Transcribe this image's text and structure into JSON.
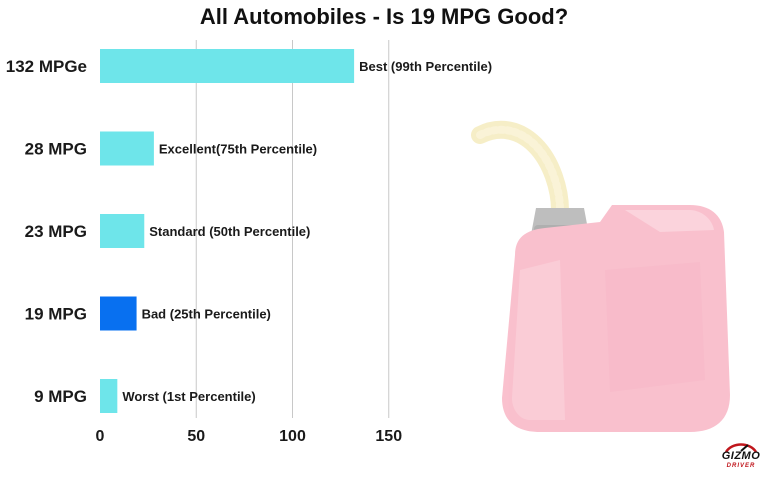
{
  "chart_data": {
    "type": "bar",
    "orientation": "horizontal",
    "title": "All Automobiles - Is 19 MPG Good?",
    "categories": [
      "132 MPGe",
      "28 MPG",
      "23 MPG",
      "19 MPG",
      "9 MPG"
    ],
    "values": [
      132,
      28,
      23,
      19,
      9
    ],
    "bar_labels": [
      "Best (99th Percentile)",
      "Excellent(75th Percentile)",
      "Standard (50th Percentile)",
      "Bad (25th Percentile)",
      "Worst (1st Percentile)"
    ],
    "highlight_index": 3,
    "xlim": [
      0,
      160
    ],
    "xticks": [
      0,
      50,
      100,
      150
    ],
    "grid": "vertical",
    "colors": {
      "bar": "#6ee5ea",
      "highlight_bar": "#0870f0",
      "highlight_label": "#1b82e8",
      "grid": "#c8c8c8"
    }
  },
  "background_image": "pink-gas-can",
  "logo": {
    "text": "GIZMO",
    "subtext": "DRIVER",
    "colors": {
      "text": "#111111",
      "accent": "#c0161c"
    }
  }
}
